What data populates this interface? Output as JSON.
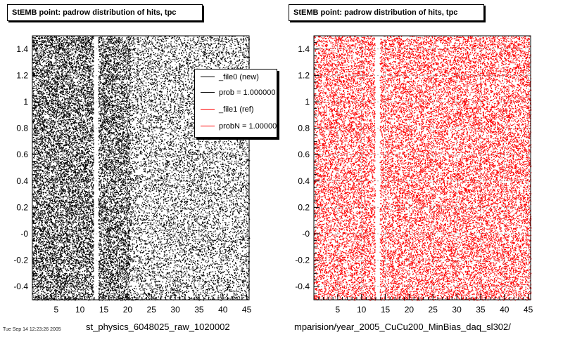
{
  "titles": {
    "left": "StEMB point: padrow distribution of hits, tpc",
    "right": "StEMB point: padrow distribution of hits, tpc"
  },
  "captions": {
    "left": "st_physics_6048025_raw_1020002",
    "right": "mparision/year_2005_CuCu200_MinBias_daq_sl302/"
  },
  "legend": {
    "entries": [
      {
        "label": "_file0 (new)",
        "color": "#000000"
      },
      {
        "label": "prob = 1.000000",
        "color": "#000000"
      },
      {
        "label": "_file1 (ref)",
        "color": "#ff0000"
      },
      {
        "label": "probN = 1.000000",
        "color": "#ff0000"
      }
    ]
  },
  "footer": "Tue Sep 14 12:23:26 2005",
  "chart_data": [
    {
      "type": "scatter",
      "title": "StEMB point: padrow distribution of hits, tpc",
      "xlabel": "",
      "ylabel": "",
      "xlim": [
        0,
        45.5
      ],
      "ylim": [
        -0.5,
        1.5
      ],
      "xticks": [
        5,
        10,
        15,
        20,
        25,
        30,
        35,
        40,
        45
      ],
      "yticks": [
        -0.4,
        -0.2,
        0,
        0.2,
        0.4,
        0.6,
        0.8,
        1,
        1.2,
        1.4
      ],
      "ytick_labels": [
        "-0.4",
        "-0.2",
        "-0",
        "0.2",
        "0.4",
        "0.6",
        "0.8",
        "1",
        "1.2",
        "1.4"
      ],
      "gap_x": [
        12.8,
        13.8
      ],
      "density_note": "hits uniformly filling padrows 1-45, denser at low padrow, no hits at padrow 13",
      "color": "#000000",
      "grid": true
    },
    {
      "type": "scatter",
      "title": "StEMB point: padrow distribution of hits, tpc",
      "xlabel": "",
      "ylabel": "",
      "xlim": [
        0,
        45.5
      ],
      "ylim": [
        -0.5,
        1.5
      ],
      "xticks": [
        5,
        10,
        15,
        20,
        25,
        30,
        35,
        40,
        45
      ],
      "yticks": [
        -0.4,
        -0.2,
        0,
        0.2,
        0.4,
        0.6,
        0.8,
        1,
        1.2,
        1.4
      ],
      "ytick_labels": [
        "-0.4",
        "-0.2",
        "-0",
        "0.2",
        "0.4",
        "0.6",
        "0.8",
        "1",
        "1.2",
        "1.4"
      ],
      "gap_x": [
        12.8,
        13.8
      ],
      "density_note": "hits uniformly filling padrows 1-45, no hits at padrow 13",
      "color": "#ff0000",
      "grid": true
    }
  ]
}
